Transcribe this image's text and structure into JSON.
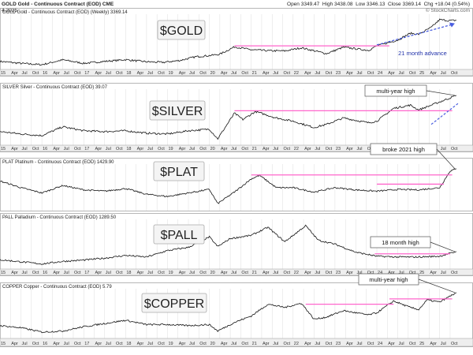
{
  "header": {
    "title": "GOLD Gold - Continuous Contract (EOD) CME",
    "date": "4-2025",
    "open_label": "Open",
    "open": "3349.47",
    "high_label": "High",
    "high": "3438.08",
    "low_label": "Low",
    "low": "3346.13",
    "close_label": "Close",
    "close": "3369.14",
    "chg_label": "Chg",
    "chg": "+18.04 (0.54%)",
    "copyright": "© StockCharts.com"
  },
  "colors": {
    "price": "#111111",
    "level": "#ff66cc",
    "arrow": "#4a5ee0",
    "panel_border": "#999999",
    "grid": "#dddddd",
    "axis_strip": "#eeeeee"
  },
  "chart_data": [
    {
      "type": "line",
      "panel_title": "GOLD Gold - Continuous Contract (EOD) (Weekly) 3369.14",
      "badge": "$GOLD",
      "annotation": "21 month advance",
      "x_range": [
        2015.0,
        2025.92
      ],
      "ylim": [
        1000,
        3600
      ],
      "series": [
        {
          "x": [
            2015.0,
            2015.5,
            2016.0,
            2016.5,
            2017.0,
            2017.5,
            2018.0,
            2018.5,
            2018.9,
            2019.3,
            2019.7,
            2020.0,
            2020.25,
            2020.6,
            2021.0,
            2021.4,
            2021.8,
            2022.2,
            2022.8,
            2023.2,
            2023.8,
            2024.0,
            2024.5,
            2024.8,
            2025.0,
            2025.3,
            2025.5,
            2025.7,
            2025.9
          ],
          "y": [
            1250,
            1150,
            1080,
            1330,
            1150,
            1250,
            1340,
            1230,
            1200,
            1300,
            1500,
            1550,
            1620,
            2000,
            1850,
            1800,
            1790,
            1950,
            1650,
            1980,
            1820,
            2050,
            2350,
            2700,
            2650,
            3000,
            3400,
            3350,
            3369
          ]
        }
      ],
      "levels": [
        {
          "from": 2020.6,
          "to": 2024.3,
          "y": 2050
        }
      ]
    },
    {
      "type": "line",
      "panel_title": "SILVER Silver - Continuous Contract (EOD) 39.07",
      "badge": "$SILVER",
      "annotation": "multi-year high",
      "x_range": [
        2015.0,
        2025.92
      ],
      "ylim": [
        10,
        42
      ],
      "series": [
        {
          "x": [
            2015.0,
            2015.5,
            2016.0,
            2016.5,
            2017.0,
            2017.5,
            2018.0,
            2018.5,
            2019.0,
            2019.5,
            2020.0,
            2020.2,
            2020.6,
            2020.8,
            2021.1,
            2021.6,
            2022.0,
            2022.5,
            2022.8,
            2023.2,
            2023.8,
            2024.0,
            2024.4,
            2024.8,
            2025.0,
            2025.3,
            2025.6,
            2025.9
          ],
          "y": [
            16.5,
            15,
            14,
            19.5,
            17,
            16.5,
            17,
            15.5,
            15,
            17,
            18,
            12,
            28,
            24,
            29,
            25,
            23,
            19,
            21,
            25,
            22,
            23,
            31,
            33,
            30,
            33,
            36,
            39.07
          ]
        }
      ],
      "levels": [
        {
          "from": 2020.6,
          "to": 2025.8,
          "y": 29.5
        }
      ]
    },
    {
      "type": "line",
      "panel_title": "PLAT Platinum - Continuous Contract (EOD) 1429.90",
      "badge": "$PLAT",
      "annotation": "broke 2021 high",
      "x_range": [
        2015.0,
        2025.92
      ],
      "ylim": [
        550,
        1500
      ],
      "series": [
        {
          "x": [
            2015.0,
            2015.5,
            2016.0,
            2016.5,
            2017.0,
            2017.5,
            2018.0,
            2018.5,
            2019.0,
            2019.5,
            2020.0,
            2020.2,
            2020.6,
            2021.0,
            2021.2,
            2021.6,
            2022.0,
            2022.5,
            2023.0,
            2023.5,
            2024.0,
            2024.5,
            2025.0,
            2025.3,
            2025.5,
            2025.6,
            2025.75,
            2025.9
          ],
          "y": [
            1150,
            1000,
            880,
            1050,
            950,
            920,
            980,
            850,
            800,
            880,
            960,
            640,
            900,
            1200,
            1280,
            1000,
            1000,
            900,
            1000,
            950,
            920,
            960,
            950,
            980,
            1000,
            1150,
            1380,
            1429.9
          ]
        }
      ],
      "levels": [
        {
          "from": 2021.0,
          "to": 2025.8,
          "y": 1290
        },
        {
          "from": 2024.0,
          "to": 2025.6,
          "y": 1080
        }
      ]
    },
    {
      "type": "line",
      "panel_title": "PALL Palladium - Continuous Contract (EOD) 1289.50",
      "badge": "$PALL",
      "annotation": "18 month high",
      "x_range": [
        2015.0,
        2025.92
      ],
      "ylim": [
        400,
        3200
      ],
      "series": [
        {
          "x": [
            2015.0,
            2015.5,
            2016.0,
            2016.5,
            2017.0,
            2017.5,
            2018.0,
            2018.5,
            2019.0,
            2019.5,
            2020.0,
            2020.2,
            2020.5,
            2021.0,
            2021.4,
            2021.8,
            2022.2,
            2022.3,
            2022.6,
            2023.0,
            2023.5,
            2024.0,
            2024.5,
            2025.0,
            2025.5,
            2025.9
          ],
          "y": [
            780,
            650,
            520,
            680,
            760,
            880,
            1050,
            950,
            1350,
            1550,
            2200,
            1600,
            2100,
            2300,
            2800,
            1900,
            2700,
            2900,
            2000,
            1750,
            1250,
            1000,
            950,
            950,
            1000,
            1289.5
          ]
        }
      ],
      "levels": [
        {
          "from": 2023.95,
          "to": 2025.75,
          "y": 1150
        }
      ]
    },
    {
      "type": "line",
      "panel_title": "COPPER Copper - Continuous Contract (EOD) 5.79",
      "badge": "$COPPER",
      "annotation": "multi-year high",
      "x_range": [
        2015.0,
        2025.92
      ],
      "ylim": [
        1.8,
        6.0
      ],
      "series": [
        {
          "x": [
            2015.0,
            2015.5,
            2016.0,
            2016.5,
            2017.0,
            2017.5,
            2018.0,
            2018.5,
            2019.0,
            2019.5,
            2020.0,
            2020.2,
            2020.6,
            2021.0,
            2021.4,
            2021.8,
            2022.2,
            2022.5,
            2022.8,
            2023.2,
            2023.8,
            2024.0,
            2024.4,
            2024.8,
            2025.0,
            2025.2,
            2025.5,
            2025.9
          ],
          "y": [
            2.7,
            2.5,
            2.1,
            2.2,
            2.6,
            2.9,
            3.2,
            2.8,
            2.8,
            2.7,
            2.8,
            2.2,
            3.0,
            3.6,
            4.7,
            4.4,
            4.8,
            3.3,
            3.5,
            4.1,
            3.7,
            3.9,
            5.0,
            4.4,
            4.2,
            5.1,
            4.9,
            5.79
          ]
        }
      ],
      "levels": [
        {
          "from": 2022.3,
          "to": 2024.4,
          "y": 4.7
        },
        {
          "from": 2024.3,
          "to": 2025.8,
          "y": 5.2
        }
      ]
    }
  ],
  "x_axis": {
    "ticks": [
      {
        "t": 2015.0,
        "label": "15"
      },
      {
        "t": 2015.25,
        "label": "Apr"
      },
      {
        "t": 2015.5,
        "label": "Jul"
      },
      {
        "t": 2015.75,
        "label": "Oct"
      },
      {
        "t": 2016.0,
        "label": "16"
      },
      {
        "t": 2016.25,
        "label": "Apr"
      },
      {
        "t": 2016.5,
        "label": "Jul"
      },
      {
        "t": 2016.75,
        "label": "Oct"
      },
      {
        "t": 2017.0,
        "label": "17"
      },
      {
        "t": 2017.25,
        "label": "Apr"
      },
      {
        "t": 2017.5,
        "label": "Jul"
      },
      {
        "t": 2017.75,
        "label": "Oct"
      },
      {
        "t": 2018.0,
        "label": "18"
      },
      {
        "t": 2018.25,
        "label": "Apr"
      },
      {
        "t": 2018.5,
        "label": "Jul"
      },
      {
        "t": 2018.75,
        "label": "Oct"
      },
      {
        "t": 2019.0,
        "label": "19"
      },
      {
        "t": 2019.25,
        "label": "Apr"
      },
      {
        "t": 2019.5,
        "label": "Jul"
      },
      {
        "t": 2019.75,
        "label": "Oct"
      },
      {
        "t": 2020.0,
        "label": "20"
      },
      {
        "t": 2020.25,
        "label": "Apr"
      },
      {
        "t": 2020.5,
        "label": "Jul"
      },
      {
        "t": 2020.75,
        "label": "Oct"
      },
      {
        "t": 2021.0,
        "label": "21"
      },
      {
        "t": 2021.25,
        "label": "Apr"
      },
      {
        "t": 2021.5,
        "label": "Jul"
      },
      {
        "t": 2021.75,
        "label": "Oct"
      },
      {
        "t": 2022.0,
        "label": "22"
      },
      {
        "t": 2022.25,
        "label": "Apr"
      },
      {
        "t": 2022.5,
        "label": "Jul"
      },
      {
        "t": 2022.75,
        "label": "Oct"
      },
      {
        "t": 2023.0,
        "label": "23"
      },
      {
        "t": 2023.25,
        "label": "Apr"
      },
      {
        "t": 2023.5,
        "label": "Jul"
      },
      {
        "t": 2023.75,
        "label": "Oct"
      },
      {
        "t": 2024.0,
        "label": "24"
      },
      {
        "t": 2024.25,
        "label": "Apr"
      },
      {
        "t": 2024.5,
        "label": "Jul"
      },
      {
        "t": 2024.75,
        "label": "Oct"
      },
      {
        "t": 2025.0,
        "label": "25"
      },
      {
        "t": 2025.25,
        "label": "Apr"
      },
      {
        "t": 2025.5,
        "label": "Jul"
      },
      {
        "t": 2025.75,
        "label": "Oct"
      }
    ]
  }
}
